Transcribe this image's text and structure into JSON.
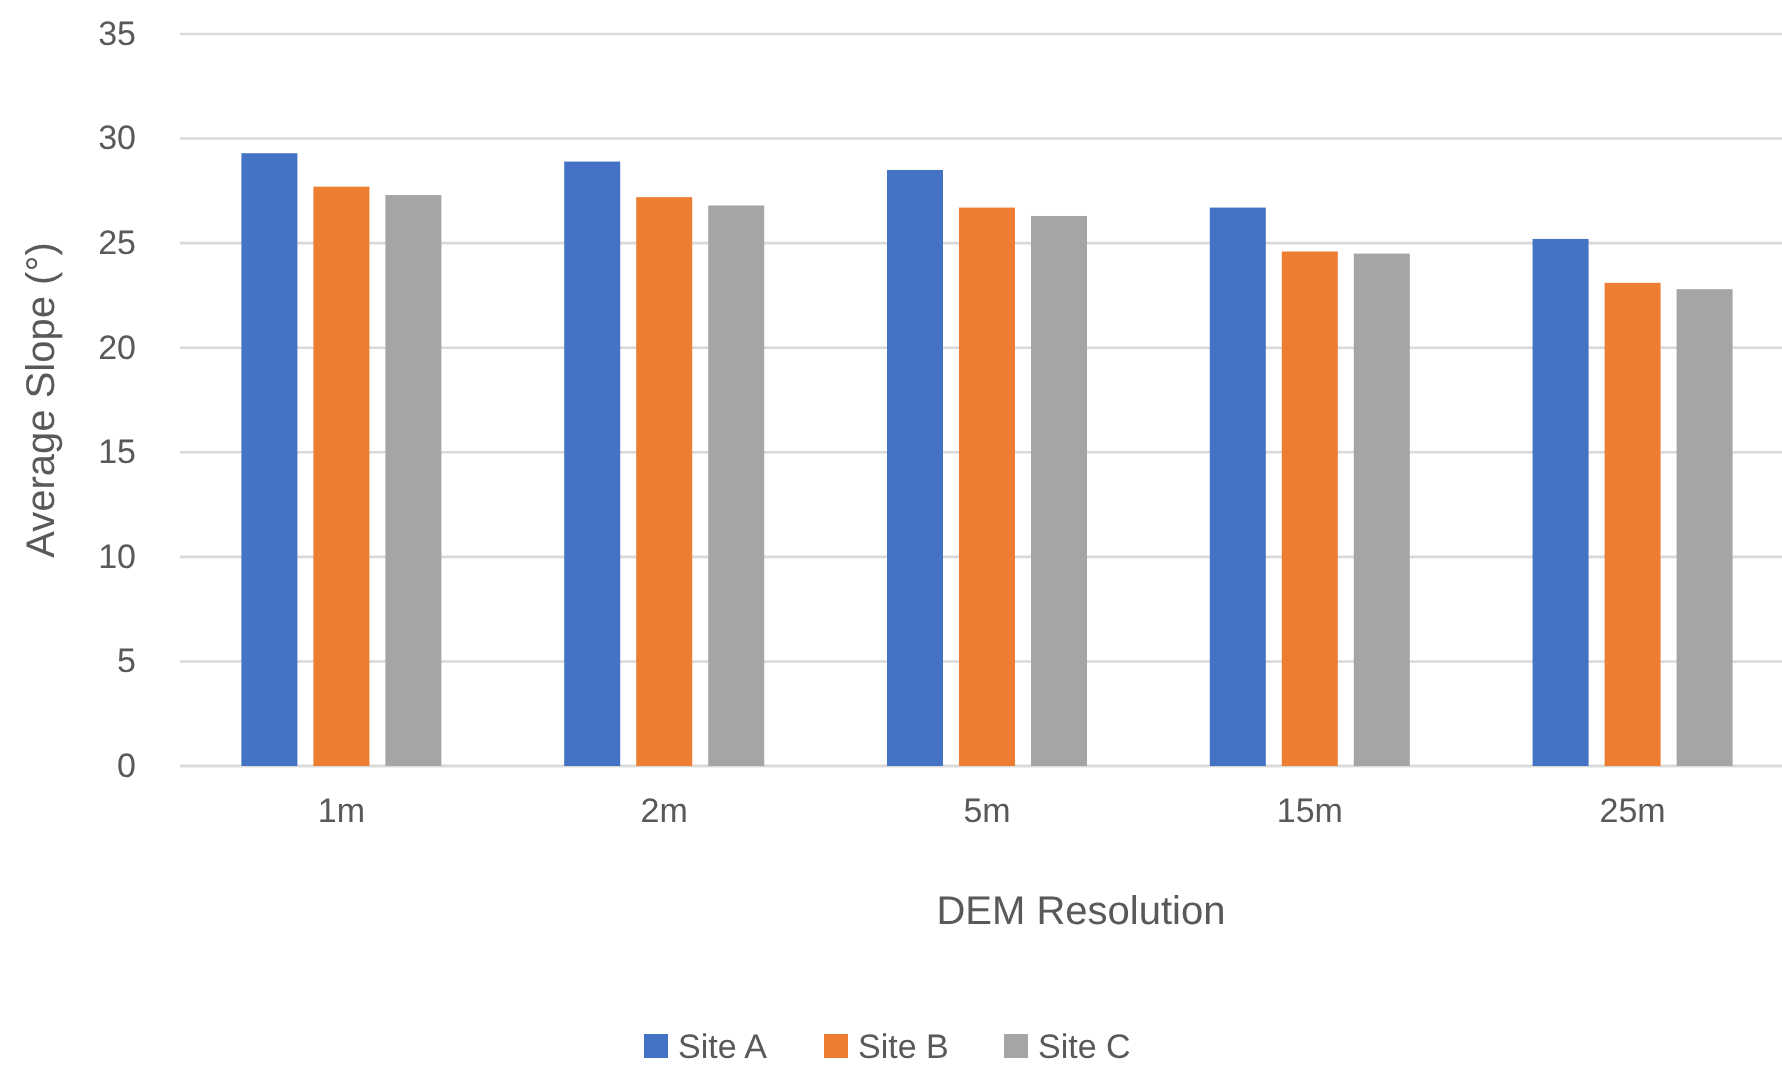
{
  "chart_data": {
    "type": "bar",
    "xlabel": "DEM Resolution",
    "ylabel": "Average Slope (°)",
    "categories": [
      "1m",
      "2m",
      "5m",
      "15m",
      "25m"
    ],
    "series": [
      {
        "name": "Site A",
        "color": "#4472c4",
        "values": [
          29.3,
          28.9,
          28.5,
          26.7,
          25.2
        ]
      },
      {
        "name": "Site B",
        "color": "#ed7d31",
        "values": [
          27.7,
          27.2,
          26.7,
          24.6,
          23.1
        ]
      },
      {
        "name": "Site C",
        "color": "#a5a5a5",
        "values": [
          27.3,
          26.8,
          26.3,
          24.5,
          22.8
        ]
      }
    ],
    "ylim": [
      0,
      35
    ],
    "yticks": [
      0,
      5,
      10,
      15,
      20,
      25,
      30,
      35
    ],
    "grid": "y",
    "legend": "bottom"
  }
}
